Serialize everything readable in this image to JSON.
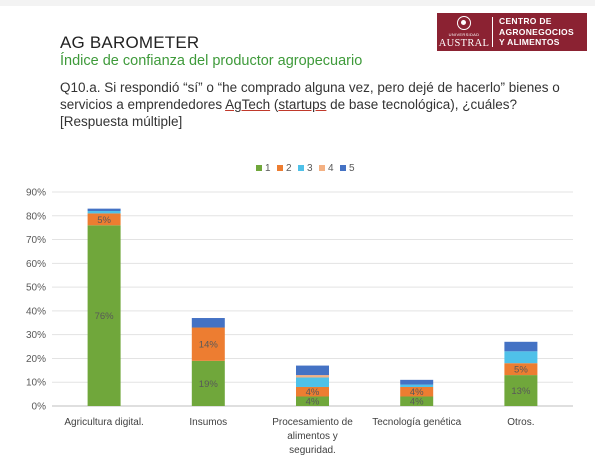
{
  "header": {
    "title": "AG BAROMETER",
    "subtitle": "Índice de confianza del productor agropecuario",
    "question_part1": "Q10.a. Si respondió “sí” o “he comprado alguna vez, pero dejé de hacerlo” bienes o servicios a emprendedores ",
    "question_underlined": "AgTech",
    "question_part2": " (",
    "question_underlined2": "startups",
    "question_part3": " de base tecnológica), ¿cuáles? [Respuesta múltiple]"
  },
  "logo": {
    "university_small": "UNIVERSIDAD",
    "university": "AUSTRAL",
    "line1": "CENTRO DE",
    "line2": "AGRONEGOCIOS",
    "line3": "Y ALIMENTOS",
    "color": "#8b2232"
  },
  "chart_data": {
    "type": "bar",
    "stacked": true,
    "categories": [
      "Agricultura digital.",
      "Insumos",
      "Procesamiento de alimentos y seguridad.",
      "Tecnología genética",
      "Otros."
    ],
    "category_lines": [
      [
        "Agricultura digital."
      ],
      [
        "Insumos"
      ],
      [
        "Procesamiento de",
        "alimentos y",
        "seguridad."
      ],
      [
        "Tecnología genética"
      ],
      [
        "Otros."
      ]
    ],
    "series": [
      {
        "name": "1",
        "color": "#70a73b",
        "values": [
          76,
          19,
          4,
          4,
          13
        ],
        "labels": [
          "76%",
          "19%",
          "4%",
          "4%",
          "13%"
        ]
      },
      {
        "name": "2",
        "color": "#ed7d31",
        "values": [
          5,
          14,
          4,
          4,
          5
        ],
        "labels": [
          "5%",
          "14%",
          "4%",
          "4%",
          "5%"
        ]
      },
      {
        "name": "3",
        "color": "#4fc1e9",
        "values": [
          1,
          0,
          4,
          1,
          5
        ],
        "labels": [
          "",
          "",
          "",
          "",
          ""
        ]
      },
      {
        "name": "4",
        "color": "#f4b183",
        "values": [
          0,
          0,
          1,
          0,
          0
        ],
        "labels": [
          "",
          "",
          "",
          "",
          ""
        ]
      },
      {
        "name": "5",
        "color": "#4472c4",
        "values": [
          1,
          4,
          4,
          2,
          4
        ],
        "labels": [
          "",
          "",
          "",
          "",
          ""
        ]
      }
    ],
    "y_ticks": [
      "0%",
      "10%",
      "20%",
      "30%",
      "40%",
      "50%",
      "60%",
      "70%",
      "80%",
      "90%"
    ],
    "ylim": [
      0,
      90
    ],
    "grid": true,
    "legend_position": "top"
  }
}
